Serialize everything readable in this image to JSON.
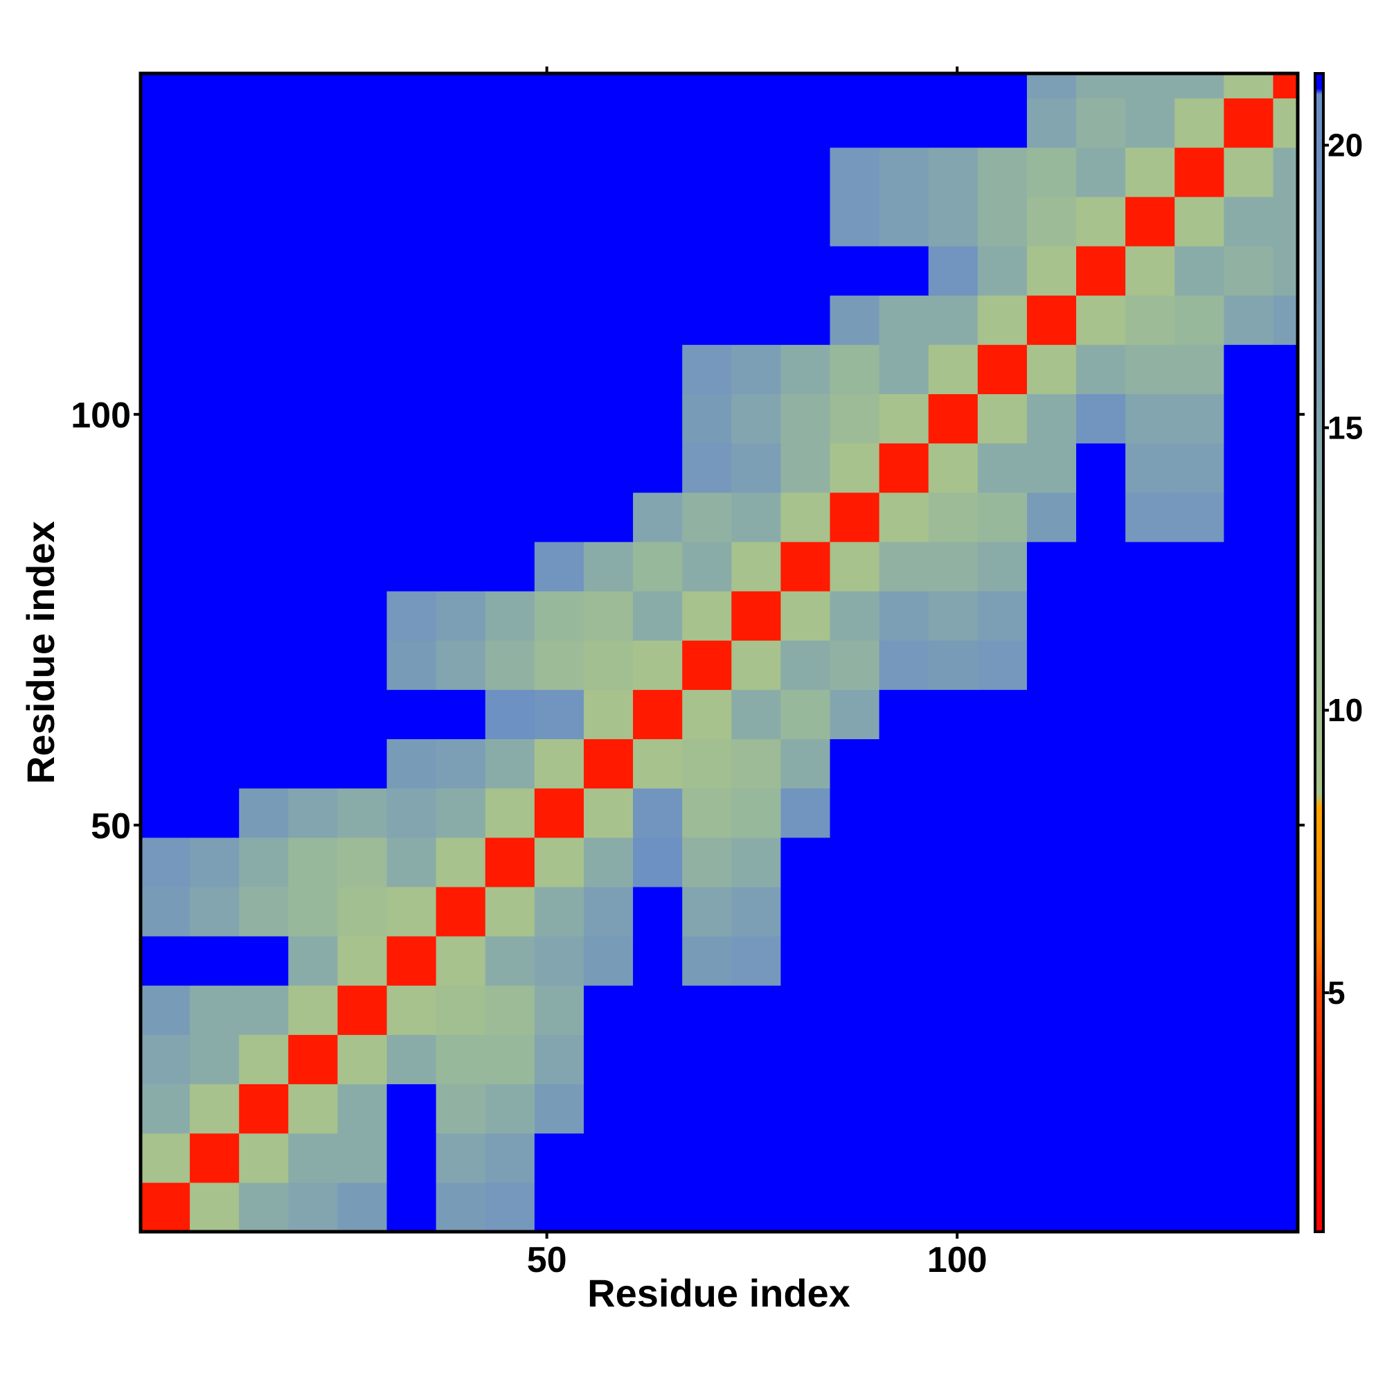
{
  "chart_data": {
    "type": "heatmap",
    "x_label": "Residue index",
    "y_label": "Residue index",
    "xlim": [
      0.5,
      141.5
    ],
    "ylim": [
      0.5,
      141.5
    ],
    "xticks": [
      50,
      100
    ],
    "yticks": [
      50,
      100
    ],
    "xbins": [
      0.5,
      6.5,
      12.5,
      18.5,
      24.5,
      30.5,
      36.5,
      42.5,
      48.5,
      54.5,
      60.5,
      66.5,
      72.5,
      78.5,
      84.5,
      90.5,
      96.5,
      102.5,
      108.5,
      114.5,
      120.5,
      126.5,
      132.5,
      138.5,
      141.5
    ],
    "ybins": [
      0.5,
      6.5,
      12.5,
      18.5,
      24.5,
      30.5,
      36.5,
      42.5,
      48.5,
      54.5,
      60.5,
      66.5,
      72.5,
      78.5,
      84.5,
      90.5,
      96.5,
      102.5,
      108.5,
      114.5,
      120.5,
      126.5,
      132.5,
      138.5,
      141.5
    ],
    "z": [
      [
        3,
        9,
        14,
        15,
        17,
        21,
        17,
        18,
        21,
        21,
        21,
        21,
        21,
        21,
        21,
        21,
        21,
        21,
        21,
        21,
        21,
        21,
        21,
        21
      ],
      [
        9,
        3,
        9,
        14,
        14,
        21,
        15,
        16,
        21,
        21,
        21,
        21,
        21,
        21,
        21,
        21,
        21,
        21,
        21,
        21,
        21,
        21,
        21,
        21
      ],
      [
        14,
        9,
        3,
        9,
        14,
        21,
        13,
        14,
        17,
        21,
        21,
        21,
        21,
        21,
        21,
        21,
        21,
        21,
        21,
        21,
        21,
        21,
        21,
        21
      ],
      [
        15,
        14,
        9,
        3,
        9,
        14,
        12,
        12,
        15,
        21,
        21,
        21,
        21,
        21,
        21,
        21,
        21,
        21,
        21,
        21,
        21,
        21,
        21,
        21
      ],
      [
        17,
        14,
        14,
        9,
        3,
        9,
        10,
        11,
        14,
        21,
        21,
        21,
        21,
        21,
        21,
        21,
        21,
        21,
        21,
        21,
        21,
        21,
        21,
        21
      ],
      [
        21,
        21,
        21,
        14,
        9,
        3,
        9,
        14,
        15,
        17,
        21,
        17,
        18,
        21,
        21,
        21,
        21,
        21,
        21,
        21,
        21,
        21,
        21,
        21
      ],
      [
        17,
        15,
        13,
        12,
        10,
        9,
        3,
        9,
        14,
        16,
        21,
        15,
        16,
        21,
        21,
        21,
        21,
        21,
        21,
        21,
        21,
        21,
        21,
        21
      ],
      [
        18,
        16,
        14,
        12,
        11,
        14,
        9,
        3,
        9,
        14,
        20,
        13,
        14,
        21,
        21,
        21,
        21,
        21,
        21,
        21,
        21,
        21,
        21,
        21
      ],
      [
        21,
        21,
        17,
        15,
        14,
        15,
        14,
        9,
        3,
        9,
        19,
        11,
        12,
        19,
        21,
        21,
        21,
        21,
        21,
        21,
        21,
        21,
        21,
        21
      ],
      [
        21,
        21,
        21,
        21,
        21,
        17,
        16,
        14,
        9,
        3,
        9,
        10,
        11,
        14,
        21,
        21,
        21,
        21,
        21,
        21,
        21,
        21,
        21,
        21
      ],
      [
        21,
        21,
        21,
        21,
        21,
        21,
        21,
        20,
        19,
        9,
        3,
        9,
        14,
        12,
        15,
        21,
        21,
        21,
        21,
        21,
        21,
        21,
        21,
        21
      ],
      [
        21,
        21,
        21,
        21,
        21,
        17,
        15,
        13,
        11,
        10,
        9,
        3,
        9,
        14,
        13,
        18,
        17,
        18,
        21,
        21,
        21,
        21,
        21,
        21
      ],
      [
        21,
        21,
        21,
        21,
        21,
        18,
        16,
        14,
        12,
        11,
        14,
        9,
        3,
        9,
        14,
        16,
        15,
        16,
        21,
        21,
        21,
        21,
        21,
        21
      ],
      [
        21,
        21,
        21,
        21,
        21,
        21,
        21,
        21,
        19,
        14,
        12,
        14,
        9,
        3,
        9,
        13,
        13,
        14,
        21,
        21,
        21,
        21,
        21,
        21
      ],
      [
        21,
        21,
        21,
        21,
        21,
        21,
        21,
        21,
        21,
        21,
        15,
        13,
        14,
        9,
        3,
        9,
        11,
        12,
        17,
        21,
        18,
        18,
        21,
        21
      ],
      [
        21,
        21,
        21,
        21,
        21,
        21,
        21,
        21,
        21,
        21,
        21,
        18,
        16,
        13,
        9,
        3,
        9,
        14,
        14,
        21,
        16,
        16,
        21,
        21
      ],
      [
        21,
        21,
        21,
        21,
        21,
        21,
        21,
        21,
        21,
        21,
        21,
        17,
        15,
        13,
        11,
        9,
        3,
        9,
        14,
        19,
        15,
        15,
        21,
        21
      ],
      [
        21,
        21,
        21,
        21,
        21,
        21,
        21,
        21,
        21,
        21,
        21,
        18,
        16,
        14,
        12,
        14,
        9,
        3,
        9,
        14,
        13,
        13,
        21,
        21
      ],
      [
        21,
        21,
        21,
        21,
        21,
        21,
        21,
        21,
        21,
        21,
        21,
        21,
        21,
        21,
        17,
        14,
        14,
        9,
        3,
        9,
        11,
        12,
        15,
        16
      ],
      [
        21,
        21,
        21,
        21,
        21,
        21,
        21,
        21,
        21,
        21,
        21,
        21,
        21,
        21,
        21,
        21,
        19,
        14,
        9,
        3,
        9,
        14,
        13,
        14
      ],
      [
        21,
        21,
        21,
        21,
        21,
        21,
        21,
        21,
        21,
        21,
        21,
        21,
        21,
        21,
        18,
        16,
        15,
        13,
        11,
        9,
        3,
        9,
        14,
        14
      ],
      [
        21,
        21,
        21,
        21,
        21,
        21,
        21,
        21,
        21,
        21,
        21,
        21,
        21,
        21,
        18,
        16,
        15,
        13,
        12,
        14,
        9,
        3,
        9,
        14
      ],
      [
        21,
        21,
        21,
        21,
        21,
        21,
        21,
        21,
        21,
        21,
        21,
        21,
        21,
        21,
        21,
        21,
        21,
        21,
        15,
        13,
        14,
        9,
        3,
        9
      ],
      [
        21,
        21,
        21,
        21,
        21,
        21,
        21,
        21,
        21,
        21,
        21,
        21,
        21,
        21,
        21,
        21,
        21,
        21,
        16,
        14,
        14,
        14,
        9,
        3
      ]
    ],
    "colorbar_lim": [
      0.77,
      21.27
    ],
    "colorbar_ticks": [
      5,
      10,
      15,
      20
    ],
    "colorscale": [
      {
        "value": 0.77,
        "color": "#ff0000"
      },
      {
        "value": 3,
        "color": "#ff1a00"
      },
      {
        "value": 5,
        "color": "#ff4500"
      },
      {
        "value": 6,
        "color": "#ff8000"
      },
      {
        "value": 8.3,
        "color": "#ffa500"
      },
      {
        "value": 8.5,
        "color": "#a9c48a"
      },
      {
        "value": 12,
        "color": "#98b89c"
      },
      {
        "value": 16,
        "color": "#7c9fb5"
      },
      {
        "value": 20.9,
        "color": "#6a8ec6"
      },
      {
        "value": 21,
        "color": "#0000ff"
      },
      {
        "value": 21.27,
        "color": "#0000ff"
      }
    ]
  }
}
